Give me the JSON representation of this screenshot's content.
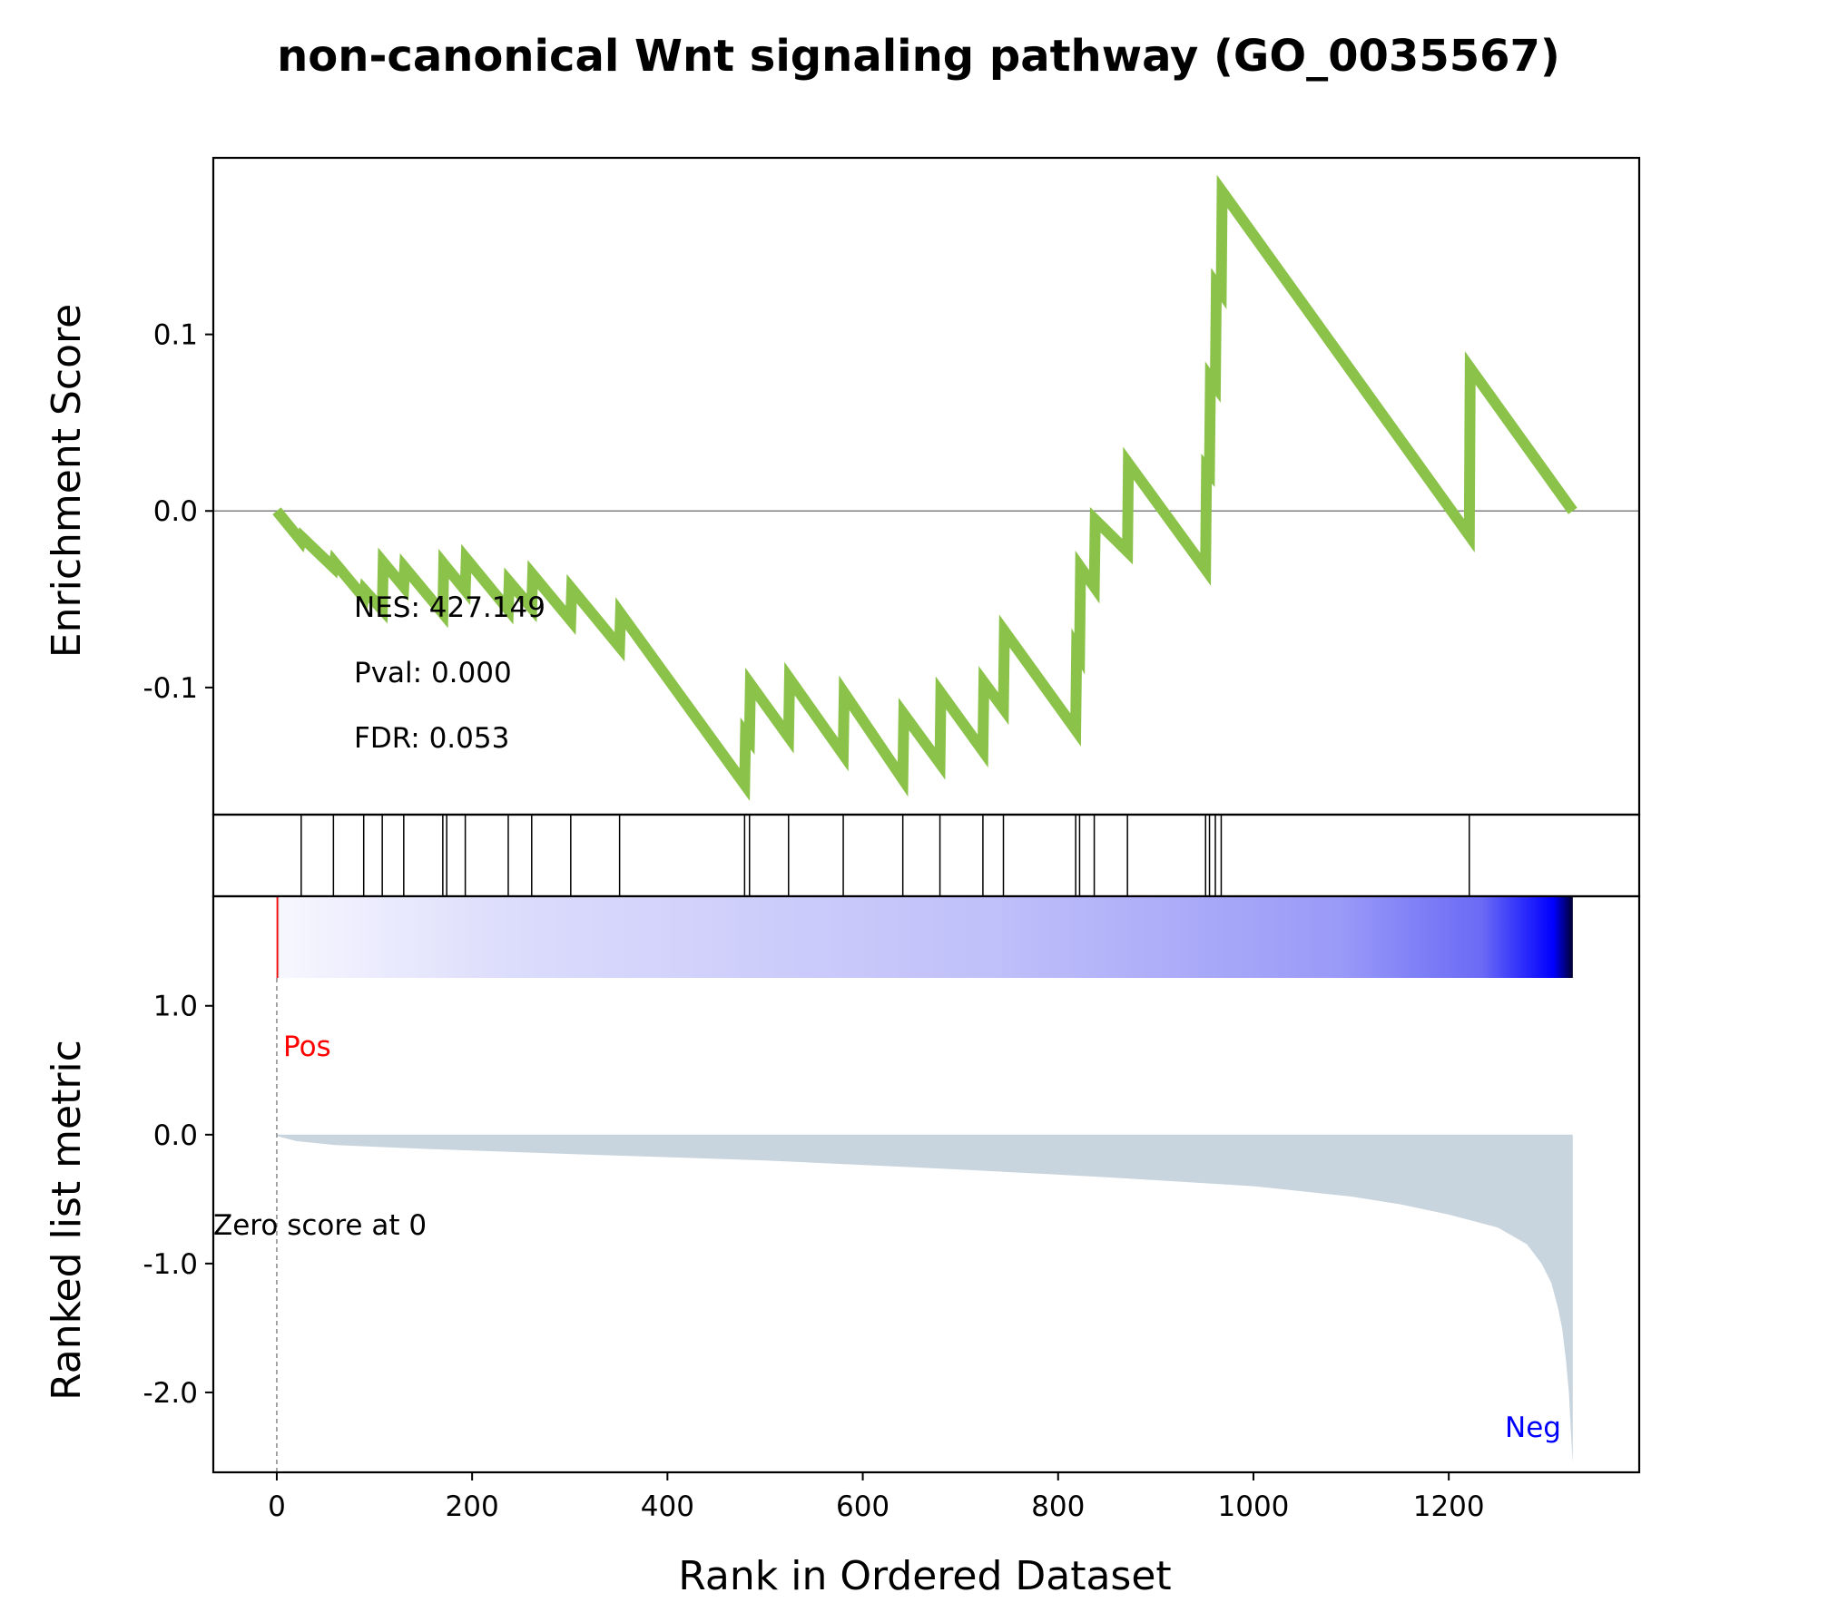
{
  "chart_data": {
    "type": "line",
    "title": "non-canonical Wnt signaling pathway (GO_0035567)",
    "xlabel": "Rank in Ordered Dataset",
    "xlim": [
      -65,
      1395
    ],
    "xticks": [
      0,
      200,
      400,
      600,
      800,
      1000,
      1200
    ],
    "enrichment": {
      "ylabel": "Enrichment Score",
      "ylim": [
        -0.172,
        0.2
      ],
      "yticks": [
        {
          "value": 0.1,
          "label": "0.1"
        },
        {
          "value": 0.0,
          "label": "0.0"
        },
        {
          "value": -0.1,
          "label": "-0.1"
        }
      ],
      "zero_line": true,
      "line_color": "#8bc34a",
      "running_es": [
        [
          0,
          0.0
        ],
        [
          25,
          -0.017
        ],
        [
          26,
          -0.015
        ],
        [
          58,
          -0.032
        ],
        [
          59,
          -0.029
        ],
        [
          89,
          -0.049
        ],
        [
          90,
          -0.045
        ],
        [
          108,
          -0.056
        ],
        [
          109,
          -0.029
        ],
        [
          130,
          -0.043
        ],
        [
          131,
          -0.032
        ],
        [
          170,
          -0.058
        ],
        [
          171,
          -0.03
        ],
        [
          193,
          -0.045
        ],
        [
          194,
          -0.027
        ],
        [
          237,
          -0.056
        ],
        [
          238,
          -0.04
        ],
        [
          261,
          -0.055
        ],
        [
          262,
          -0.036
        ],
        [
          301,
          -0.062
        ],
        [
          302,
          -0.044
        ],
        [
          351,
          -0.077
        ],
        [
          352,
          -0.058
        ],
        [
          479,
          -0.155
        ],
        [
          480,
          -0.126
        ],
        [
          484,
          -0.129
        ],
        [
          485,
          -0.098
        ],
        [
          524,
          -0.128
        ],
        [
          525,
          -0.095
        ],
        [
          580,
          -0.138
        ],
        [
          581,
          -0.103
        ],
        [
          641,
          -0.152
        ],
        [
          642,
          -0.115
        ],
        [
          679,
          -0.143
        ],
        [
          680,
          -0.103
        ],
        [
          723,
          -0.136
        ],
        [
          724,
          -0.097
        ],
        [
          744,
          -0.112
        ],
        [
          745,
          -0.068
        ],
        [
          818,
          -0.124
        ],
        [
          819,
          -0.078
        ],
        [
          822,
          -0.081
        ],
        [
          823,
          -0.032
        ],
        [
          837,
          -0.043
        ],
        [
          838,
          -0.005
        ],
        [
          871,
          -0.023
        ],
        [
          872,
          0.027
        ],
        [
          951,
          -0.033
        ],
        [
          952,
          0.024
        ],
        [
          955,
          0.022
        ],
        [
          956,
          0.075
        ],
        [
          961,
          0.071
        ],
        [
          962,
          0.128
        ],
        [
          967,
          0.124
        ],
        [
          968,
          0.181
        ],
        [
          1221,
          -0.014
        ],
        [
          1222,
          0.081
        ],
        [
          1327,
          0.0
        ]
      ],
      "stats": [
        "NES: 427.149",
        "Pval: 0.000",
        "FDR: 0.053"
      ]
    },
    "hits": [
      25,
      58,
      89,
      108,
      130,
      170,
      174,
      193,
      237,
      261,
      301,
      351,
      479,
      484,
      524,
      580,
      641,
      679,
      723,
      744,
      818,
      822,
      837,
      871,
      951,
      955,
      961,
      967,
      1221
    ],
    "ranked_metric": {
      "ylabel": "Ranked list metric",
      "ylim": [
        -2.62,
        1.85
      ],
      "yticks": [
        {
          "value": 1.0,
          "label": "1.0"
        },
        {
          "value": 0.0,
          "label": "0.0"
        },
        {
          "value": -1.0,
          "label": "-1.0"
        },
        {
          "value": -2.0,
          "label": "-2.0"
        }
      ],
      "fill_color": "#c9d5de",
      "values": [
        [
          0,
          -0.01
        ],
        [
          20,
          -0.05
        ],
        [
          60,
          -0.08
        ],
        [
          150,
          -0.11
        ],
        [
          300,
          -0.15
        ],
        [
          500,
          -0.2
        ],
        [
          700,
          -0.27
        ],
        [
          850,
          -0.33
        ],
        [
          1000,
          -0.4
        ],
        [
          1100,
          -0.48
        ],
        [
          1150,
          -0.54
        ],
        [
          1200,
          -0.62
        ],
        [
          1250,
          -0.72
        ],
        [
          1280,
          -0.85
        ],
        [
          1295,
          -1.0
        ],
        [
          1305,
          -1.15
        ],
        [
          1312,
          -1.35
        ],
        [
          1316,
          -1.5
        ],
        [
          1320,
          -1.75
        ],
        [
          1323,
          -2.0
        ],
        [
          1325,
          -2.3
        ],
        [
          1327,
          -2.55
        ]
      ],
      "zero_score_label": "Zero score at 0",
      "pos_label": "Pos",
      "neg_label": "Neg",
      "pos_color": "#ff0000",
      "neg_color": "#0000ff"
    },
    "colorbar": {
      "colors": [
        "#b22222",
        "#f7f7ff",
        "#dcdcfc",
        "#c0c0fa",
        "#9a9af8",
        "#6a6af6",
        "#0000ff",
        "#000030"
      ]
    }
  }
}
